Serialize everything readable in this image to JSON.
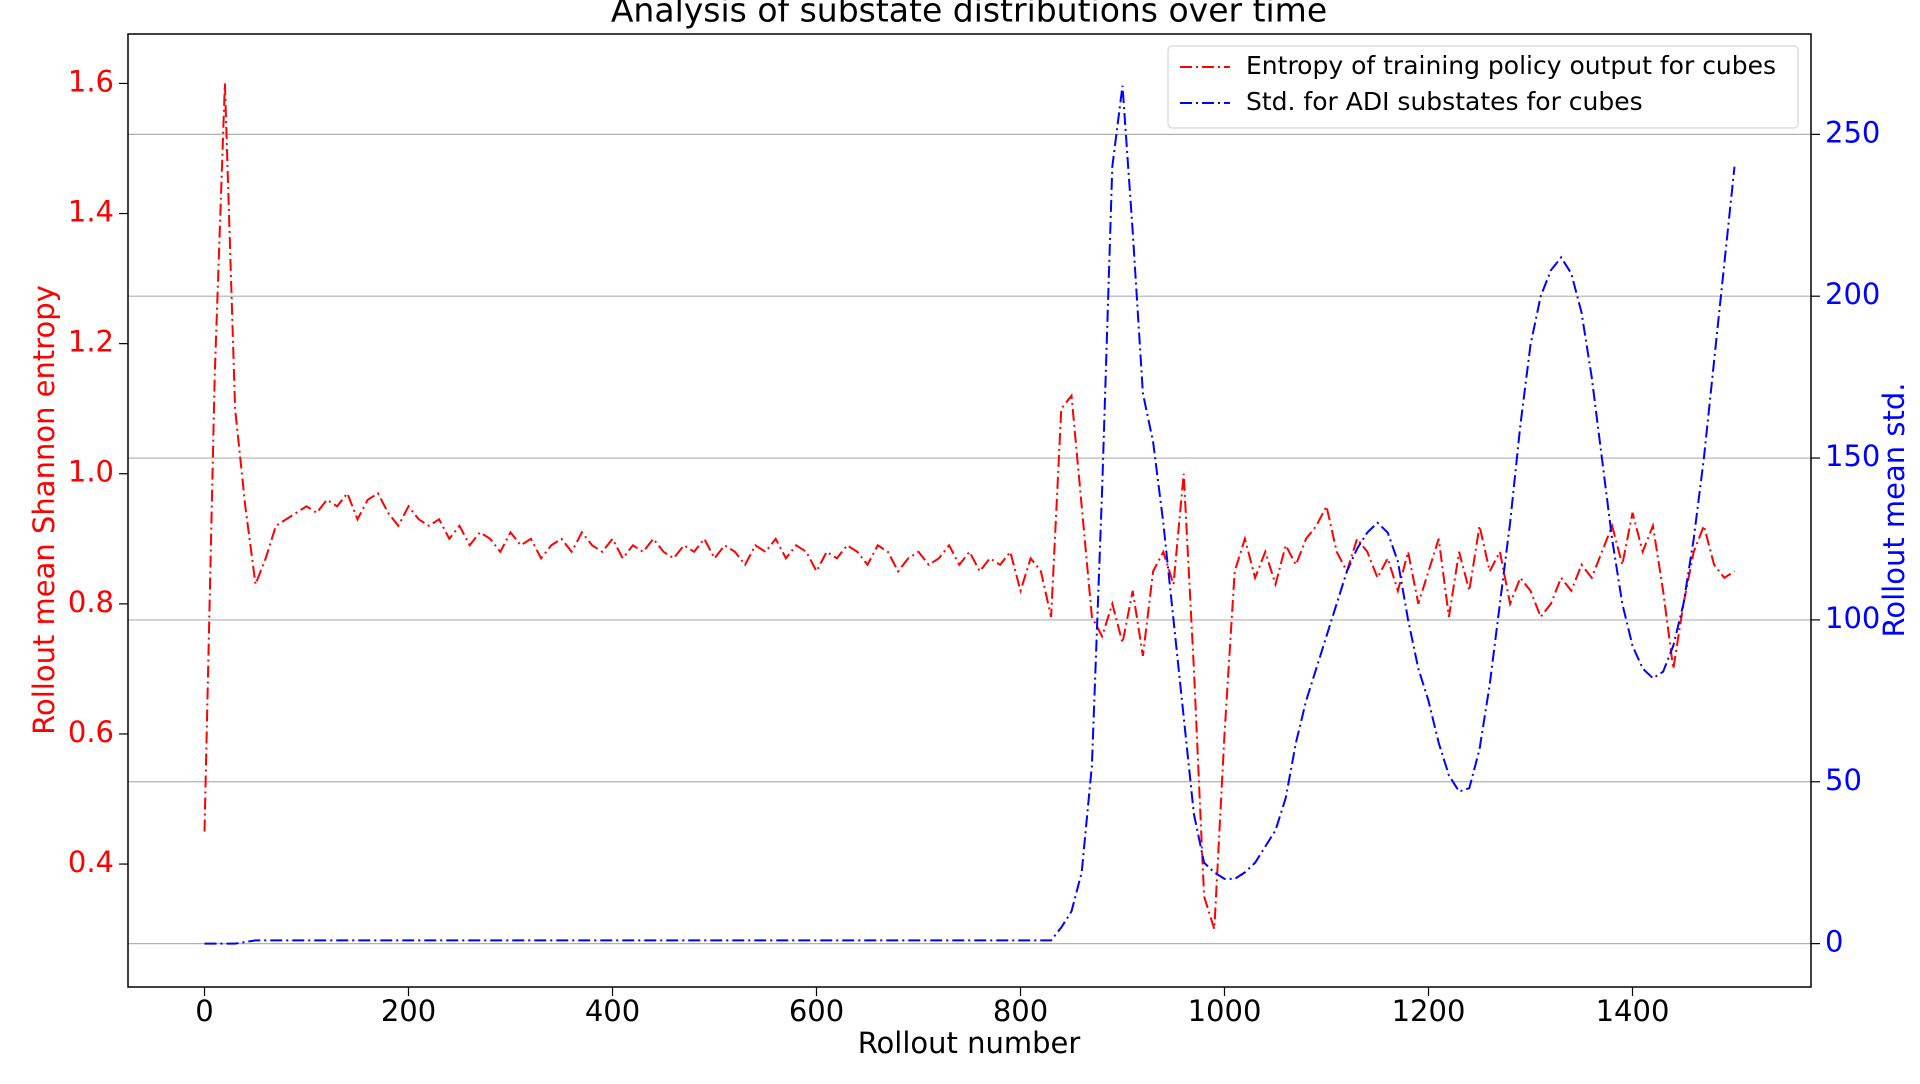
{
  "chart_data": {
    "type": "line",
    "title": "Analysis of substate distributions over time",
    "xlabel": "Rollout number",
    "ylabel": "Rollout mean Shannon entropy",
    "y2label": "Rollout mean std.",
    "legend": "upper right",
    "grid": "y2",
    "xlim": [
      -75,
      1575
    ],
    "xticks": [
      0,
      200,
      400,
      600,
      800,
      1000,
      1200,
      1400
    ],
    "ylim": [
      0.211,
      1.676
    ],
    "yticks": [
      0.4,
      0.6,
      0.8,
      {
        "value": 1,
        "label": "1.0"
      },
      1.2,
      1.4,
      1.6
    ],
    "y2lim": [
      -13.4,
      281
    ],
    "y2ticks": [
      0,
      50,
      100,
      150,
      200,
      250
    ],
    "x": [
      0,
      10,
      20,
      30,
      40,
      50,
      60,
      70,
      80,
      90,
      100,
      110,
      120,
      130,
      140,
      150,
      160,
      170,
      180,
      190,
      200,
      210,
      220,
      230,
      240,
      250,
      260,
      270,
      280,
      290,
      300,
      310,
      320,
      330,
      340,
      350,
      360,
      370,
      380,
      390,
      400,
      410,
      420,
      430,
      440,
      450,
      460,
      470,
      480,
      490,
      500,
      510,
      520,
      530,
      540,
      550,
      560,
      570,
      580,
      590,
      600,
      610,
      620,
      630,
      640,
      650,
      660,
      670,
      680,
      690,
      700,
      710,
      720,
      730,
      740,
      750,
      760,
      770,
      780,
      790,
      800,
      810,
      820,
      830,
      840,
      850,
      860,
      870,
      880,
      890,
      900,
      910,
      920,
      930,
      940,
      950,
      960,
      970,
      980,
      990,
      1000,
      1010,
      1020,
      1030,
      1040,
      1050,
      1060,
      1070,
      1080,
      1090,
      1100,
      1110,
      1120,
      1130,
      1140,
      1150,
      1160,
      1170,
      1180,
      1190,
      1200,
      1210,
      1220,
      1230,
      1240,
      1250,
      1260,
      1270,
      1280,
      1290,
      1300,
      1310,
      1320,
      1330,
      1340,
      1350,
      1360,
      1370,
      1380,
      1390,
      1400,
      1410,
      1420,
      1430,
      1440,
      1450,
      1460,
      1470,
      1480,
      1490,
      1500
    ],
    "series": [
      {
        "name": "Entropy of training policy output for cubes",
        "color": "#ff0000",
        "values": [
          0.45,
          1.15,
          1.6,
          1.1,
          0.95,
          0.83,
          0.87,
          0.92,
          0.93,
          0.94,
          0.95,
          0.94,
          0.96,
          0.95,
          0.97,
          0.93,
          0.96,
          0.97,
          0.94,
          0.92,
          0.95,
          0.93,
          0.92,
          0.93,
          0.9,
          0.92,
          0.89,
          0.91,
          0.9,
          0.88,
          0.91,
          0.89,
          0.9,
          0.87,
          0.89,
          0.9,
          0.88,
          0.91,
          0.89,
          0.88,
          0.9,
          0.87,
          0.89,
          0.88,
          0.9,
          0.88,
          0.87,
          0.89,
          0.88,
          0.9,
          0.87,
          0.89,
          0.88,
          0.86,
          0.89,
          0.88,
          0.9,
          0.87,
          0.89,
          0.88,
          0.85,
          0.88,
          0.87,
          0.89,
          0.88,
          0.86,
          0.89,
          0.88,
          0.85,
          0.87,
          0.88,
          0.86,
          0.87,
          0.89,
          0.86,
          0.88,
          0.85,
          0.87,
          0.86,
          0.88,
          0.82,
          0.87,
          0.85,
          0.78,
          1.1,
          1.12,
          0.95,
          0.78,
          0.75,
          0.8,
          0.74,
          0.82,
          0.72,
          0.85,
          0.88,
          0.83,
          1.0,
          0.7,
          0.35,
          0.3,
          0.6,
          0.85,
          0.9,
          0.84,
          0.88,
          0.83,
          0.89,
          0.86,
          0.9,
          0.92,
          0.95,
          0.88,
          0.85,
          0.9,
          0.88,
          0.84,
          0.87,
          0.82,
          0.88,
          0.8,
          0.85,
          0.9,
          0.78,
          0.88,
          0.82,
          0.92,
          0.85,
          0.88,
          0.8,
          0.84,
          0.82,
          0.78,
          0.8,
          0.84,
          0.82,
          0.86,
          0.84,
          0.88,
          0.92,
          0.86,
          0.94,
          0.88,
          0.92,
          0.82,
          0.7,
          0.8,
          0.88,
          0.92,
          0.86,
          0.84,
          0.85
        ]
      },
      {
        "name": "Std. for ADI substates for cubes",
        "color": "#0000ff",
        "axis": "y2",
        "values": [
          0,
          0,
          0,
          0,
          0.5,
          1,
          1,
          1,
          1,
          1,
          1,
          1,
          1,
          1,
          1,
          1,
          1,
          1,
          1,
          1,
          1,
          1,
          1,
          1,
          1,
          1,
          1,
          1,
          1,
          1,
          1,
          1,
          1,
          1,
          1,
          1,
          1,
          1,
          1,
          1,
          1,
          1,
          1,
          1,
          1,
          1,
          1,
          1,
          1,
          1,
          1,
          1,
          1,
          1,
          1,
          1,
          1,
          1,
          1,
          1,
          1,
          1,
          1,
          1,
          1,
          1,
          1,
          1,
          1,
          1,
          1,
          1,
          1,
          1,
          1,
          1,
          1,
          1,
          1,
          1,
          1,
          1,
          1,
          1,
          5,
          10,
          22,
          55,
          140,
          240,
          265,
          220,
          170,
          155,
          130,
          100,
          70,
          40,
          25,
          22,
          20,
          20,
          22,
          25,
          30,
          35,
          45,
          62,
          75,
          85,
          95,
          105,
          115,
          122,
          127,
          130,
          127,
          118,
          100,
          85,
          75,
          62,
          52,
          47,
          48,
          60,
          80,
          105,
          130,
          160,
          185,
          200,
          208,
          212,
          207,
          195,
          175,
          150,
          125,
          105,
          92,
          85,
          82,
          84,
          92,
          105,
          125,
          150,
          180,
          210,
          240
        ]
      }
    ]
  }
}
